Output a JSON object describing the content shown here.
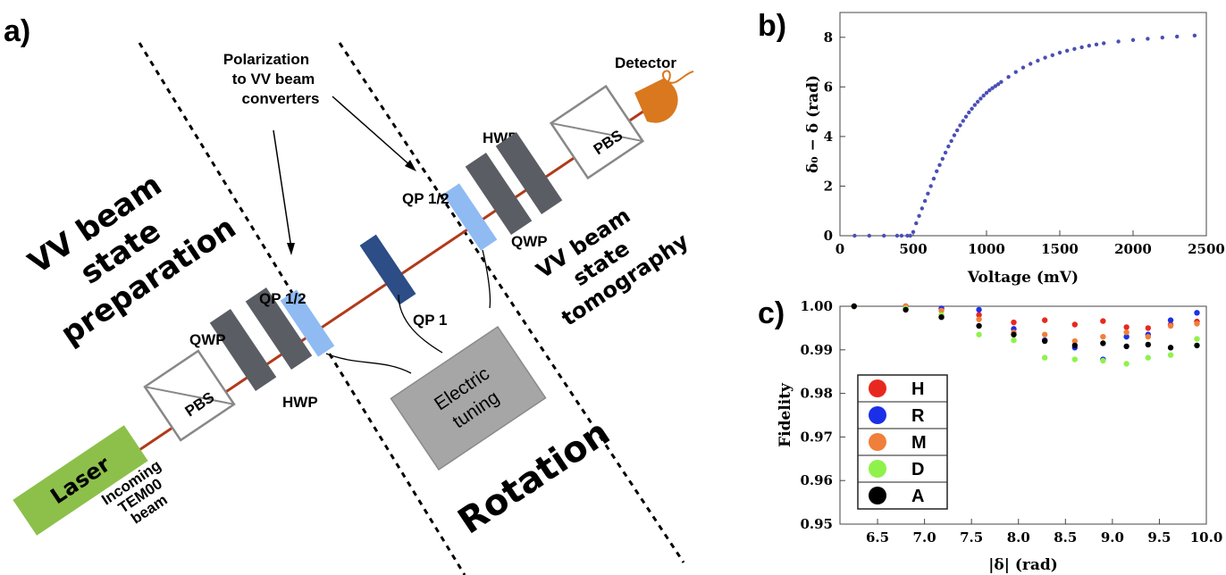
{
  "panel_a": {
    "letter": "a)",
    "labels": {
      "prep_line1": "VV beam",
      "prep_line2": "state",
      "prep_line3": "preparation",
      "tomo_line1": "VV beam",
      "tomo_line2": "state",
      "tomo_line3": "tomography",
      "rotation": "Rotation",
      "polarization_line1": "Polarization",
      "polarization_line2": "to VV beam",
      "polarization_line3": "converters",
      "detector": "Detector",
      "laser": "Laser",
      "incoming_line1": "Incoming",
      "incoming_line2": "TEM00",
      "incoming_line3": "beam",
      "pbs_left": "PBS",
      "pbs_right": "PBS",
      "qwp_left": "QWP",
      "hwp_left": "HWP",
      "qp12_left": "QP 1/2",
      "qp1": "QP 1",
      "qp12_right": "QP 1/2",
      "hwp_right": "HWP",
      "qwp_right": "QWP",
      "electric_line1": "Electric",
      "electric_line2": "tuning"
    }
  },
  "panel_b": {
    "letter": "b)"
  },
  "panel_c": {
    "letter": "c)"
  },
  "chart_data": [
    {
      "type": "scatter",
      "xlabel": "Voltage (mV)",
      "ylabel": "δ₀ − δ (rad)",
      "xlim": [
        0,
        2500
      ],
      "ylim": [
        0,
        9
      ],
      "xticks": [
        0,
        500,
        1000,
        1500,
        2000,
        2500
      ],
      "yticks": [
        0,
        2,
        4,
        6,
        8
      ],
      "color": "#4b4fb5",
      "series": [
        {
          "x": [
            100,
            200,
            300,
            390,
            420,
            460,
            480,
            500,
            520,
            540,
            560,
            580,
            600,
            620,
            640,
            660,
            680,
            700,
            720,
            740,
            760,
            780,
            800,
            820,
            840,
            860,
            880,
            900,
            920,
            940,
            960,
            980,
            1000,
            1020,
            1040,
            1060,
            1080,
            1100,
            1150,
            1200,
            1250,
            1300,
            1350,
            1400,
            1450,
            1500,
            1550,
            1600,
            1650,
            1700,
            1750,
            1800,
            1900,
            2000,
            2100,
            2200,
            2300,
            2420
          ],
          "y": [
            0,
            0,
            0,
            0,
            0,
            0,
            0,
            0.15,
            0.5,
            0.8,
            1.1,
            1.4,
            1.7,
            2.0,
            2.3,
            2.6,
            2.85,
            3.1,
            3.35,
            3.6,
            3.82,
            4.05,
            4.25,
            4.45,
            4.63,
            4.8,
            4.97,
            5.12,
            5.27,
            5.4,
            5.53,
            5.65,
            5.76,
            5.86,
            5.95,
            6.03,
            6.11,
            6.2,
            6.4,
            6.6,
            6.78,
            6.93,
            7.06,
            7.18,
            7.28,
            7.38,
            7.46,
            7.53,
            7.6,
            7.66,
            7.71,
            7.76,
            7.83,
            7.89,
            7.94,
            7.99,
            8.03,
            8.07
          ]
        }
      ]
    },
    {
      "type": "scatter",
      "xlabel": "|δ| (rad)",
      "ylabel": "Fidelity",
      "xlim": [
        6.1,
        10.0
      ],
      "ylim": [
        0.95,
        1.0
      ],
      "xticks": [
        6.5,
        7.0,
        7.5,
        8.0,
        8.5,
        9.0,
        9.5,
        10.0
      ],
      "yticks": [
        0.95,
        0.96,
        0.97,
        0.98,
        0.99,
        1.0
      ],
      "legend": "inside-lower-left",
      "x": [
        6.25,
        6.8,
        7.18,
        7.58,
        7.95,
        8.28,
        8.6,
        8.9,
        9.15,
        9.38,
        9.62,
        9.9
      ],
      "series": [
        {
          "name": "H",
          "color": "#e8281f",
          "values": [
            1.0,
            1.0,
            0.9995,
            0.998,
            0.9963,
            0.9968,
            0.9958,
            0.9966,
            0.9952,
            0.995,
            0.9958,
            0.9965
          ]
        },
        {
          "name": "R",
          "color": "#1b2fe8",
          "values": [
            1.0,
            1.0,
            0.9995,
            0.9992,
            0.9948,
            0.9922,
            0.9905,
            0.9878,
            0.993,
            0.9935,
            0.9968,
            0.9985
          ]
        },
        {
          "name": "M",
          "color": "#f07f3a",
          "values": [
            1.0,
            1.0,
            0.999,
            0.997,
            0.994,
            0.9935,
            0.992,
            0.993,
            0.994,
            0.993,
            0.9955,
            0.996
          ]
        },
        {
          "name": "D",
          "color": "#8ff24b",
          "values": [
            1.0,
            0.9995,
            0.998,
            0.9935,
            0.9922,
            0.9882,
            0.9878,
            0.9875,
            0.9868,
            0.9882,
            0.9888,
            0.9925
          ]
        },
        {
          "name": "A",
          "color": "#000000",
          "values": [
            1.0,
            0.9992,
            0.9975,
            0.9955,
            0.9935,
            0.992,
            0.991,
            0.9915,
            0.9908,
            0.9912,
            0.9905,
            0.991
          ]
        }
      ]
    }
  ]
}
